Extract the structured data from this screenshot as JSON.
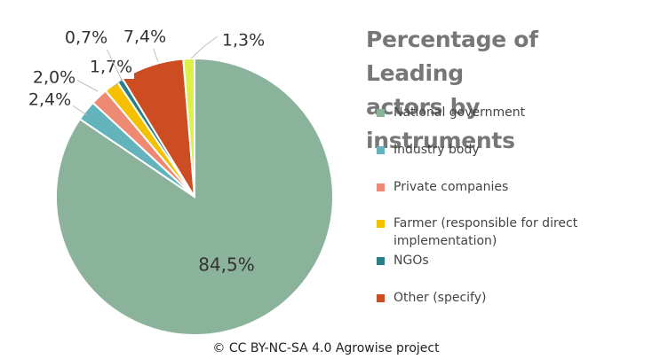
{
  "chart_data": {
    "type": "pie",
    "title": "Percentage of Leading actors by instruments",
    "title_lines": [
      "Percentage of Leading",
      "actors by instruments"
    ],
    "legend_position": "right",
    "slices": [
      {
        "name": "National government",
        "value": 84.5,
        "label": "84,5%",
        "color": "#8bb39b"
      },
      {
        "name": "Industry body",
        "value": 2.4,
        "label": "2,4%",
        "color": "#62b3bb"
      },
      {
        "name": "Private companies",
        "value": 2.0,
        "label": "2,0%",
        "color": "#ee8a73"
      },
      {
        "name": "Farmer (responsible for direct implementation)",
        "value": 1.7,
        "label": "1,7%",
        "color": "#f5c000"
      },
      {
        "name": "NGOs",
        "value": 0.7,
        "label": "0,7%",
        "color": "#2a7f86"
      },
      {
        "name": "Other (specify)",
        "value": 7.4,
        "label": "7,4%",
        "color": "#cc4d22"
      },
      {
        "name": "",
        "value": 1.3,
        "label": "1,3%",
        "color": "#dcf04a"
      }
    ]
  },
  "legend": {
    "items": [
      {
        "label": "National government",
        "color": "#8bb39b"
      },
      {
        "label": "Industry body",
        "color": "#62b3bb"
      },
      {
        "label": "Private companies",
        "color": "#ee8a73"
      },
      {
        "label": "Farmer (responsible for direct implementation)",
        "color": "#f5c000"
      },
      {
        "label": "NGOs",
        "color": "#2a7f86"
      },
      {
        "label": "Other (specify)",
        "color": "#cc4d22"
      }
    ]
  },
  "footer": {
    "text": "© CC BY-NC-SA 4.0 Agrowise project"
  }
}
